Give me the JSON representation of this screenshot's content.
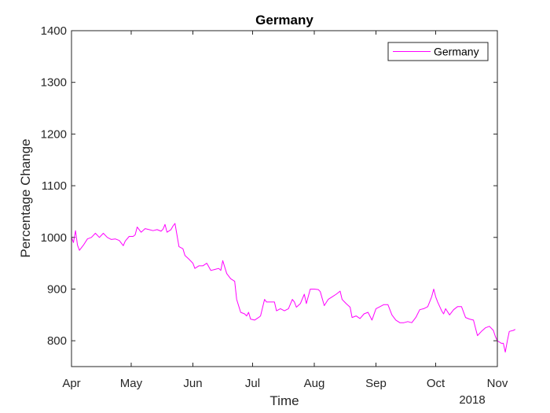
{
  "chart_data": {
    "type": "line",
    "title": "Germany",
    "xlabel": "Time",
    "ylabel": "Percentage Change",
    "year_label": "2018",
    "xlim": [
      "2018-04-01",
      "2018-11-01"
    ],
    "ylim": [
      750,
      1400
    ],
    "yticks": [
      800,
      900,
      1000,
      1100,
      1200,
      1300,
      1400
    ],
    "xticks": [
      {
        "date": "2018-04-01",
        "label": "Apr"
      },
      {
        "date": "2018-05-01",
        "label": "May"
      },
      {
        "date": "2018-06-01",
        "label": "Jun"
      },
      {
        "date": "2018-07-01",
        "label": "Jul"
      },
      {
        "date": "2018-08-01",
        "label": "Aug"
      },
      {
        "date": "2018-09-01",
        "label": "Sep"
      },
      {
        "date": "2018-10-01",
        "label": "Oct"
      },
      {
        "date": "2018-11-01",
        "label": "Nov"
      }
    ],
    "grid": false,
    "legend": {
      "position": "top-right",
      "entries": [
        "Germany"
      ]
    },
    "series": [
      {
        "name": "Germany",
        "color": "#ff00ff",
        "points": [
          [
            "2018-04-01",
            1000
          ],
          [
            "2018-04-02",
            990
          ],
          [
            "2018-04-03",
            1013
          ],
          [
            "2018-04-04",
            985
          ],
          [
            "2018-04-05",
            975
          ],
          [
            "2018-04-07",
            985
          ],
          [
            "2018-04-09",
            997
          ],
          [
            "2018-04-11",
            1000
          ],
          [
            "2018-04-13",
            1008
          ],
          [
            "2018-04-15",
            1000
          ],
          [
            "2018-04-17",
            1008
          ],
          [
            "2018-04-19",
            1000
          ],
          [
            "2018-04-21",
            996
          ],
          [
            "2018-04-23",
            997
          ],
          [
            "2018-04-25",
            994
          ],
          [
            "2018-04-27",
            984
          ],
          [
            "2018-04-28",
            993
          ],
          [
            "2018-04-30",
            1002
          ],
          [
            "2018-05-02",
            1002
          ],
          [
            "2018-05-03",
            1005
          ],
          [
            "2018-05-04",
            1020
          ],
          [
            "2018-05-05",
            1015
          ],
          [
            "2018-05-06",
            1010
          ],
          [
            "2018-05-08",
            1017
          ],
          [
            "2018-05-10",
            1015
          ],
          [
            "2018-05-12",
            1013
          ],
          [
            "2018-05-14",
            1015
          ],
          [
            "2018-05-16",
            1012
          ],
          [
            "2018-05-17",
            1016
          ],
          [
            "2018-05-18",
            1025
          ],
          [
            "2018-05-19",
            1010
          ],
          [
            "2018-05-21",
            1015
          ],
          [
            "2018-05-22",
            1022
          ],
          [
            "2018-05-23",
            1027
          ],
          [
            "2018-05-24",
            1005
          ],
          [
            "2018-05-25",
            982
          ],
          [
            "2018-05-27",
            978
          ],
          [
            "2018-05-28",
            965
          ],
          [
            "2018-05-30",
            958
          ],
          [
            "2018-06-01",
            950
          ],
          [
            "2018-06-02",
            940
          ],
          [
            "2018-06-04",
            945
          ],
          [
            "2018-06-06",
            945
          ],
          [
            "2018-06-08",
            950
          ],
          [
            "2018-06-10",
            936
          ],
          [
            "2018-06-12",
            938
          ],
          [
            "2018-06-14",
            940
          ],
          [
            "2018-06-15",
            936
          ],
          [
            "2018-06-16",
            955
          ],
          [
            "2018-06-18",
            930
          ],
          [
            "2018-06-20",
            920
          ],
          [
            "2018-06-22",
            915
          ],
          [
            "2018-06-23",
            880
          ],
          [
            "2018-06-25",
            855
          ],
          [
            "2018-06-27",
            852
          ],
          [
            "2018-06-28",
            848
          ],
          [
            "2018-06-29",
            855
          ],
          [
            "2018-06-30",
            842
          ],
          [
            "2018-07-02",
            840
          ],
          [
            "2018-07-04",
            845
          ],
          [
            "2018-07-05",
            848
          ],
          [
            "2018-07-07",
            880
          ],
          [
            "2018-07-08",
            875
          ],
          [
            "2018-07-10",
            875
          ],
          [
            "2018-07-12",
            875
          ],
          [
            "2018-07-13",
            858
          ],
          [
            "2018-07-15",
            862
          ],
          [
            "2018-07-17",
            858
          ],
          [
            "2018-07-19",
            862
          ],
          [
            "2018-07-21",
            880
          ],
          [
            "2018-07-22",
            875
          ],
          [
            "2018-07-23",
            865
          ],
          [
            "2018-07-25",
            872
          ],
          [
            "2018-07-27",
            890
          ],
          [
            "2018-07-28",
            872
          ],
          [
            "2018-07-30",
            900
          ],
          [
            "2018-08-01",
            900
          ],
          [
            "2018-08-03",
            899
          ],
          [
            "2018-08-04",
            895
          ],
          [
            "2018-08-06",
            868
          ],
          [
            "2018-08-08",
            880
          ],
          [
            "2018-08-10",
            885
          ],
          [
            "2018-08-12",
            890
          ],
          [
            "2018-08-14",
            896
          ],
          [
            "2018-08-15",
            880
          ],
          [
            "2018-08-17",
            872
          ],
          [
            "2018-08-19",
            865
          ],
          [
            "2018-08-20",
            845
          ],
          [
            "2018-08-22",
            848
          ],
          [
            "2018-08-24",
            843
          ],
          [
            "2018-08-26",
            852
          ],
          [
            "2018-08-28",
            855
          ],
          [
            "2018-08-30",
            840
          ],
          [
            "2018-09-01",
            862
          ],
          [
            "2018-09-03",
            866
          ],
          [
            "2018-09-05",
            870
          ],
          [
            "2018-09-07",
            870
          ],
          [
            "2018-09-09",
            850
          ],
          [
            "2018-09-11",
            840
          ],
          [
            "2018-09-13",
            835
          ],
          [
            "2018-09-15",
            835
          ],
          [
            "2018-09-17",
            837
          ],
          [
            "2018-09-19",
            835
          ],
          [
            "2018-09-21",
            845
          ],
          [
            "2018-09-23",
            860
          ],
          [
            "2018-09-25",
            862
          ],
          [
            "2018-09-27",
            866
          ],
          [
            "2018-09-29",
            885
          ],
          [
            "2018-09-30",
            900
          ],
          [
            "2018-10-01",
            885
          ],
          [
            "2018-10-02",
            875
          ],
          [
            "2018-10-04",
            858
          ],
          [
            "2018-10-05",
            852
          ],
          [
            "2018-10-06",
            862
          ],
          [
            "2018-10-08",
            850
          ],
          [
            "2018-10-10",
            860
          ],
          [
            "2018-10-12",
            866
          ],
          [
            "2018-10-14",
            866
          ],
          [
            "2018-10-16",
            845
          ],
          [
            "2018-10-18",
            842
          ],
          [
            "2018-10-20",
            840
          ],
          [
            "2018-10-21",
            825
          ],
          [
            "2018-10-22",
            810
          ],
          [
            "2018-10-24",
            818
          ],
          [
            "2018-10-26",
            825
          ],
          [
            "2018-10-28",
            828
          ],
          [
            "2018-10-30",
            820
          ],
          [
            "2018-10-31",
            808
          ],
          [
            "2018-11-01",
            800
          ],
          [
            "2018-11-03",
            795
          ],
          [
            "2018-11-04",
            795
          ],
          [
            "2018-11-05",
            778
          ],
          [
            "2018-11-06",
            800
          ],
          [
            "2018-11-07",
            818
          ],
          [
            "2018-11-09",
            820
          ],
          [
            "2018-11-10",
            822
          ]
        ]
      }
    ]
  }
}
